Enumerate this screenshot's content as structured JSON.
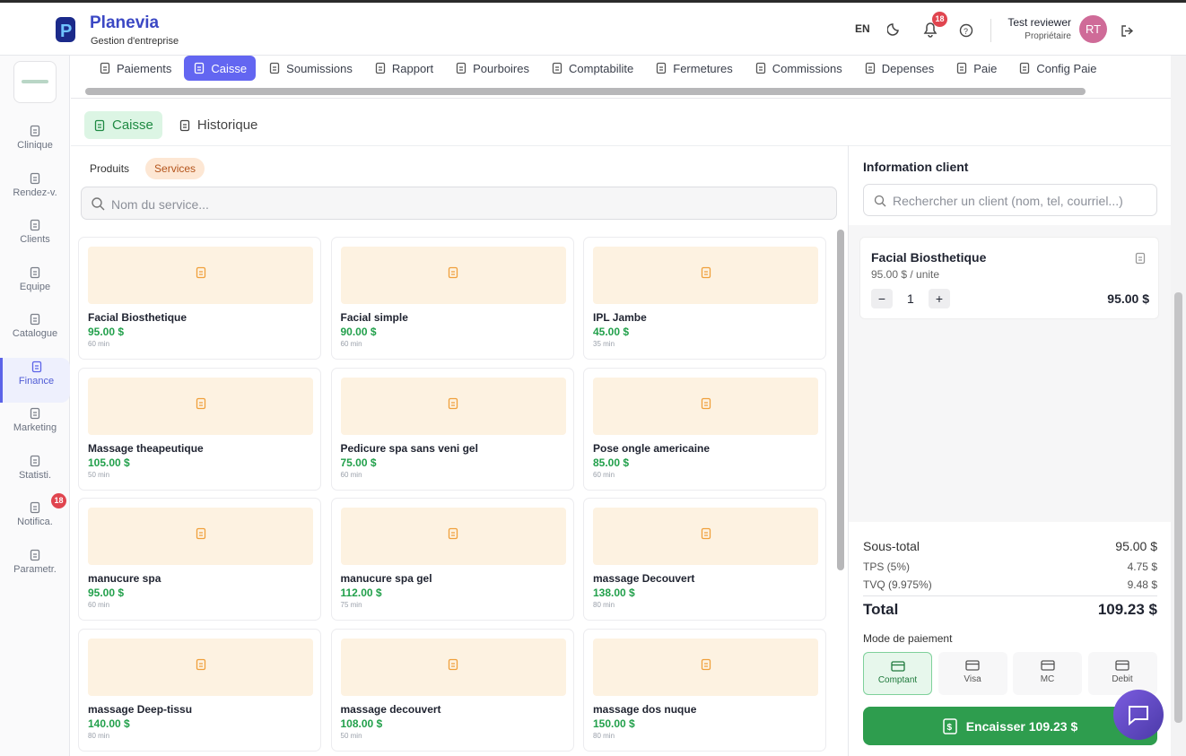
{
  "header": {
    "brand": "Planevia",
    "subtitle": "Gestion d'entreprise",
    "language": "EN",
    "notification_count": 18,
    "user_name": "Test reviewer",
    "user_role": "Propriétaire",
    "avatar_initials": "RT"
  },
  "sidebar": {
    "items": [
      {
        "label": "Clinique"
      },
      {
        "label": "Rendez-v."
      },
      {
        "label": "Clients"
      },
      {
        "label": "Equipe"
      },
      {
        "label": "Catalogue"
      },
      {
        "label": "Finance",
        "active": true
      },
      {
        "label": "Marketing"
      },
      {
        "label": "Statisti."
      },
      {
        "label": "Notifica.",
        "badge": 18
      },
      {
        "label": "Parametr."
      }
    ]
  },
  "tabs": {
    "items": [
      {
        "label": "Paiements"
      },
      {
        "label": "Caisse",
        "active": true
      },
      {
        "label": "Soumissions"
      },
      {
        "label": "Rapport"
      },
      {
        "label": "Pourboires"
      },
      {
        "label": "Comptabilite"
      },
      {
        "label": "Fermetures"
      },
      {
        "label": "Commissions"
      },
      {
        "label": "Depenses"
      },
      {
        "label": "Paie"
      },
      {
        "label": "Config Paie"
      }
    ]
  },
  "subtabs": {
    "items": [
      {
        "label": "Caisse",
        "active": true
      },
      {
        "label": "Historique"
      }
    ]
  },
  "catalog": {
    "filters": [
      {
        "label": "Produits"
      },
      {
        "label": "Services",
        "active": true
      }
    ],
    "search_placeholder": "Nom du service...",
    "services": [
      {
        "name": "Facial Biosthetique",
        "price": "95.00 $",
        "duration": "60 min"
      },
      {
        "name": "Facial simple",
        "price": "90.00 $",
        "duration": "60 min"
      },
      {
        "name": "IPL Jambe",
        "price": "45.00 $",
        "duration": "35 min"
      },
      {
        "name": "Massage theapeutique",
        "price": "105.00 $",
        "duration": "50 min"
      },
      {
        "name": "Pedicure spa sans veni gel",
        "price": "75.00 $",
        "duration": "60 min"
      },
      {
        "name": "Pose ongle americaine",
        "price": "85.00 $",
        "duration": "60 min"
      },
      {
        "name": "manucure spa",
        "price": "95.00 $",
        "duration": "60 min"
      },
      {
        "name": "manucure spa gel",
        "price": "112.00 $",
        "duration": "75 min"
      },
      {
        "name": "massage Decouvert",
        "price": "138.00 $",
        "duration": "80 min"
      },
      {
        "name": "massage Deep-tissu",
        "price": "140.00 $",
        "duration": "80 min"
      },
      {
        "name": "massage decouvert",
        "price": "108.00 $",
        "duration": "50 min"
      },
      {
        "name": "massage dos nuque",
        "price": "150.00 $",
        "duration": "80 min"
      }
    ]
  },
  "client": {
    "title": "Information client",
    "search_placeholder": "Rechercher un client (nom, tel, courriel...)"
  },
  "cart": {
    "items": [
      {
        "name": "Facial Biosthetique",
        "unit_price": "95.00 $ / unite",
        "quantity": 1,
        "total": "95.00 $"
      }
    ]
  },
  "summary": {
    "subtotal_label": "Sous-total",
    "subtotal": "95.00 $",
    "tps_label": "TPS (5%)",
    "tps": "4.75 $",
    "tvq_label": "TVQ (9.975%)",
    "tvq": "9.48 $",
    "total_label": "Total",
    "total": "109.23 $"
  },
  "payment": {
    "title": "Mode de paiement",
    "methods": [
      {
        "label": "Comptant",
        "active": true
      },
      {
        "label": "Visa"
      },
      {
        "label": "MC"
      },
      {
        "label": "Debit"
      }
    ],
    "submit": "Encaisser 109.23 $"
  }
}
